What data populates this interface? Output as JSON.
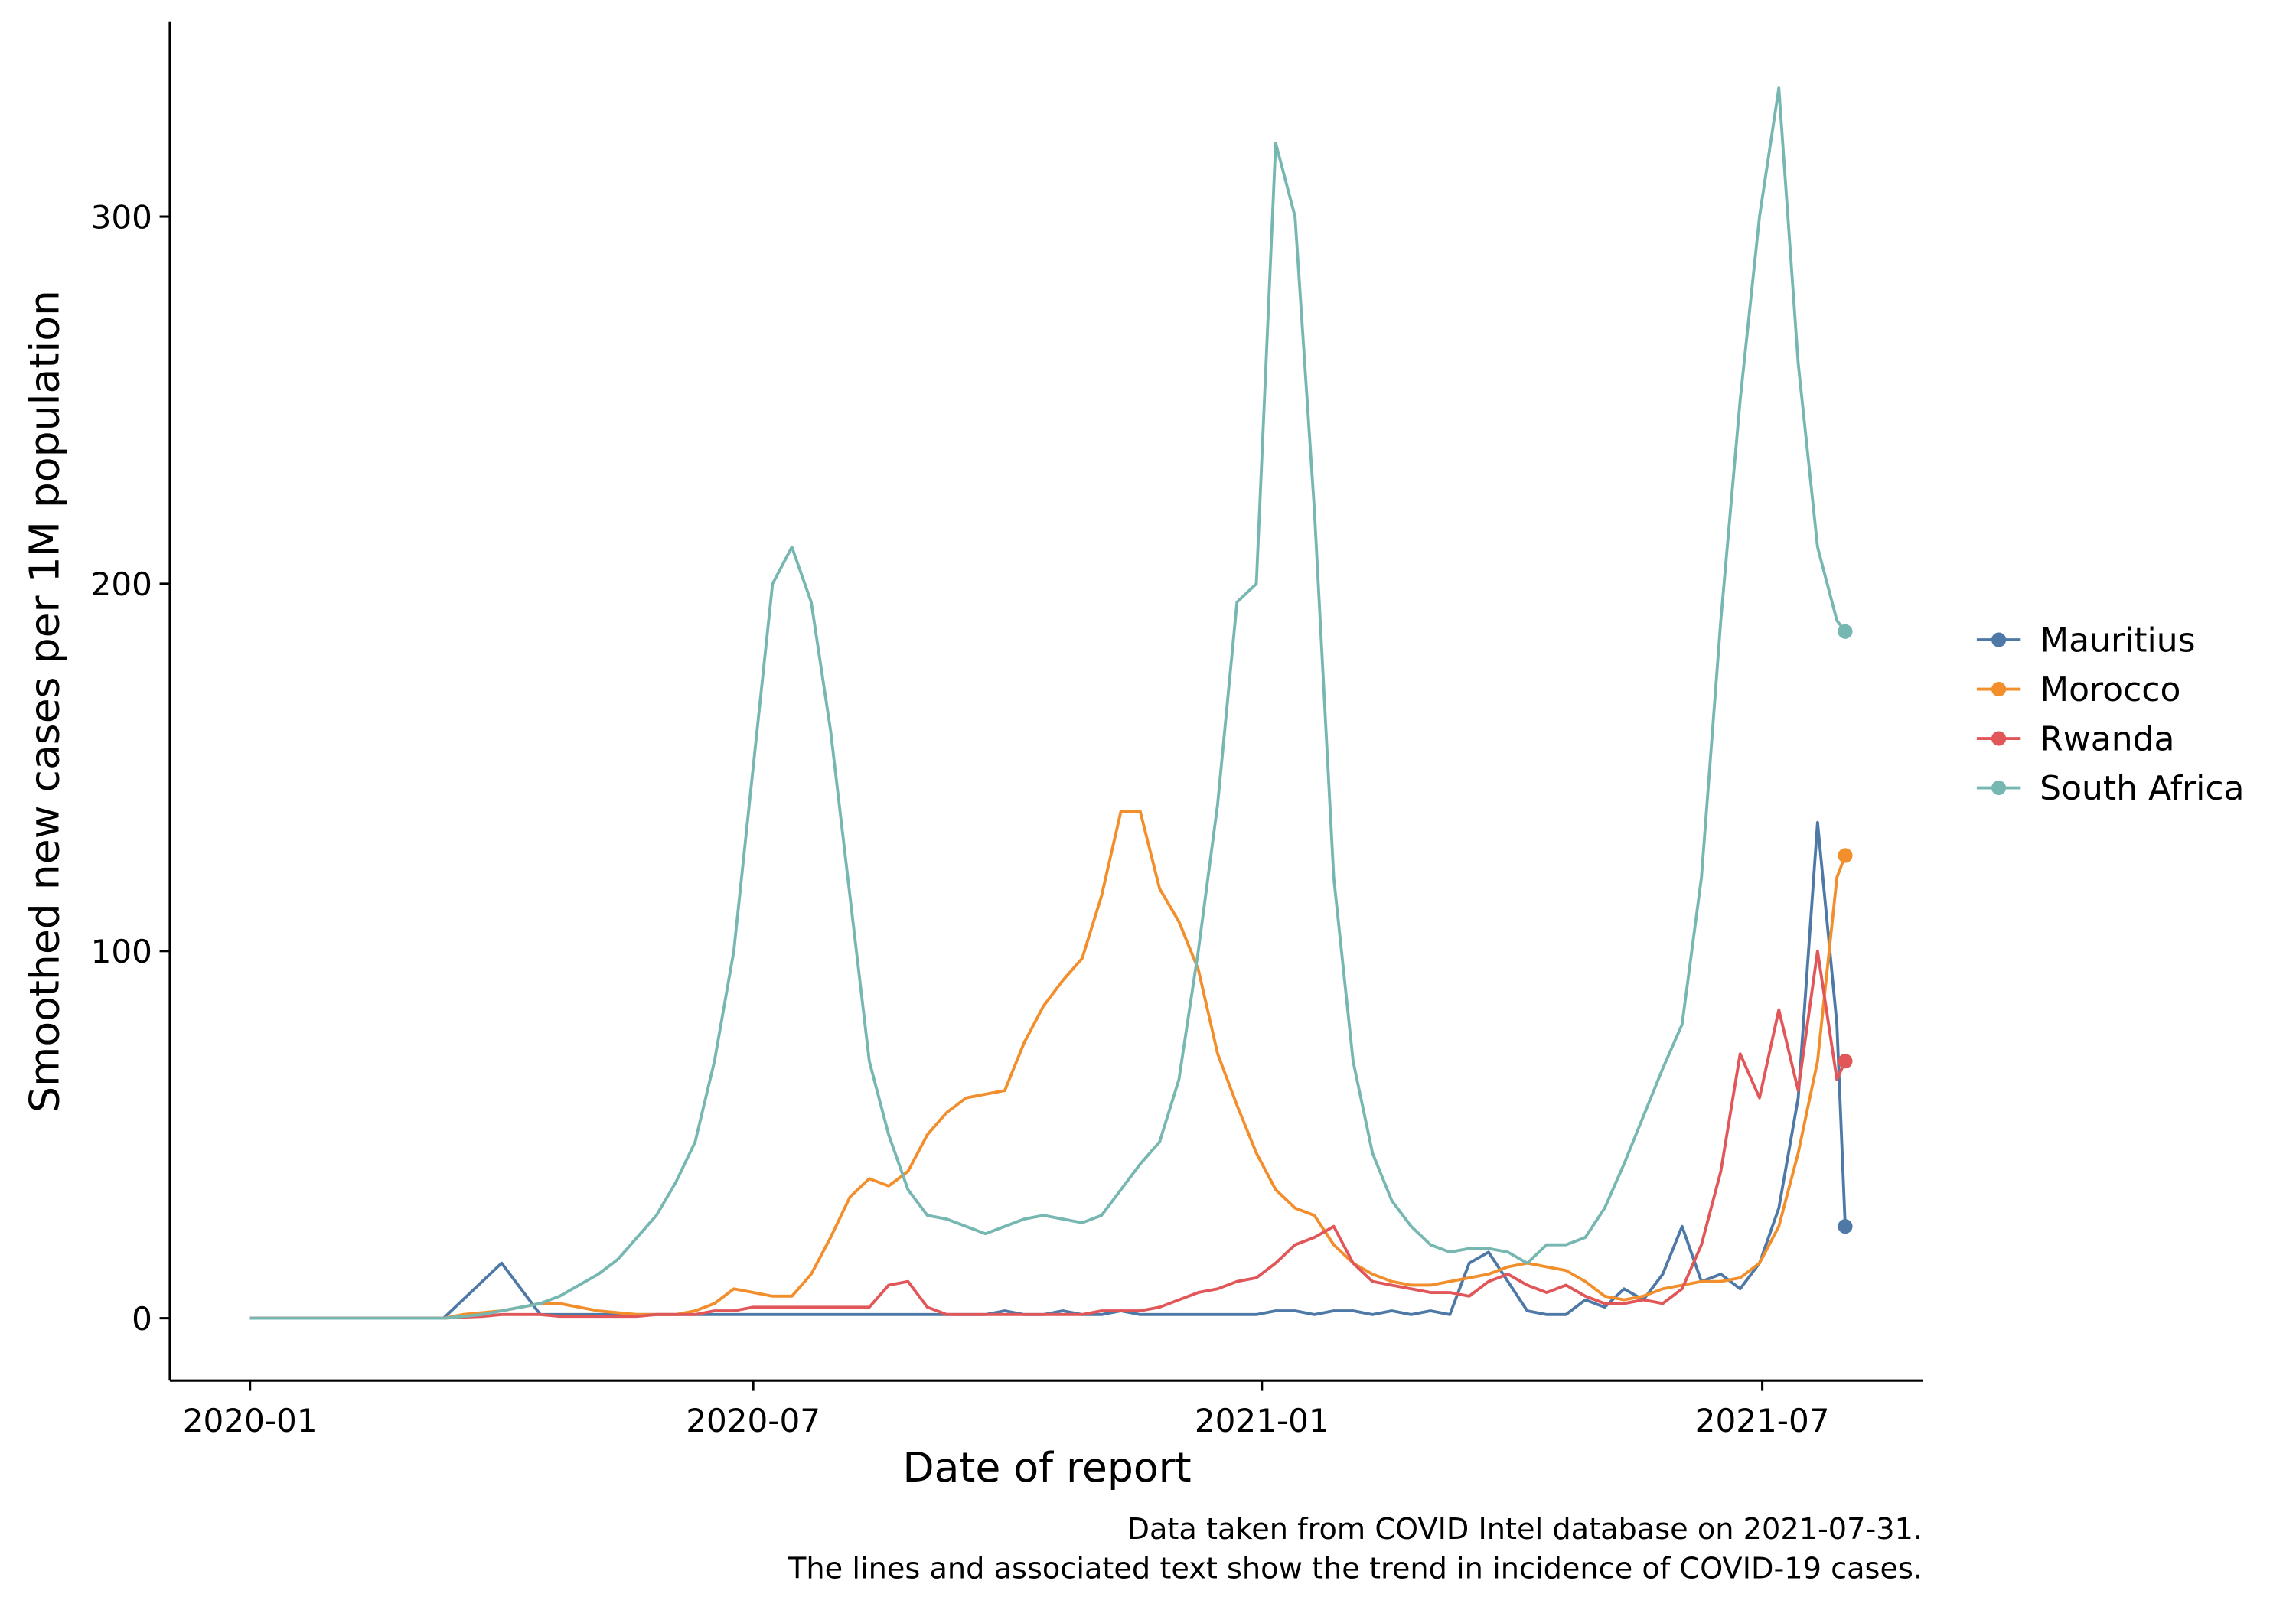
{
  "chart_data": {
    "type": "line",
    "xlabel": "Date of report",
    "ylabel": "Smoothed new cases per 1M population",
    "caption": [
      "Data taken from COVID Intel database on 2021-07-31.",
      "The lines and associated text show the trend in incidence of COVID-19 cases."
    ],
    "x_unit": "days since 2020-01-01",
    "xlim": [
      -29,
      605
    ],
    "xticks": [
      {
        "value": 0,
        "label": "2020-01"
      },
      {
        "value": 182,
        "label": "2020-07"
      },
      {
        "value": 366,
        "label": "2021-01"
      },
      {
        "value": 547,
        "label": "2021-07"
      }
    ],
    "ylim": [
      -17,
      353
    ],
    "yticks": [
      0,
      100,
      200,
      300
    ],
    "grid": false,
    "legend_position": "right",
    "end_markers": true,
    "x": [
      0,
      7,
      14,
      21,
      28,
      35,
      42,
      49,
      56,
      63,
      70,
      77,
      84,
      91,
      98,
      105,
      112,
      119,
      126,
      133,
      140,
      147,
      154,
      161,
      168,
      175,
      182,
      189,
      196,
      203,
      210,
      217,
      224,
      231,
      238,
      245,
      252,
      259,
      266,
      273,
      280,
      287,
      294,
      301,
      308,
      315,
      322,
      329,
      336,
      343,
      350,
      357,
      364,
      371,
      378,
      385,
      392,
      399,
      406,
      413,
      420,
      427,
      434,
      441,
      448,
      455,
      462,
      469,
      476,
      483,
      490,
      497,
      504,
      511,
      518,
      525,
      532,
      539,
      546,
      553,
      560,
      567,
      574,
      577
    ],
    "series": [
      {
        "name": "Mauritius",
        "color": "#4e79a7",
        "values": [
          0,
          0,
          0,
          0,
          0,
          0,
          0,
          0,
          0,
          0,
          0,
          5,
          10,
          15,
          8,
          1,
          1,
          1,
          1,
          1,
          1,
          1,
          1,
          1,
          1,
          1,
          1,
          1,
          1,
          1,
          1,
          1,
          1,
          1,
          1,
          1,
          1,
          1,
          1,
          2,
          1,
          1,
          2,
          1,
          1,
          2,
          1,
          1,
          1,
          1,
          1,
          1,
          1,
          2,
          2,
          1,
          2,
          2,
          1,
          2,
          1,
          2,
          1,
          15,
          18,
          10,
          2,
          1,
          1,
          5,
          3,
          8,
          5,
          12,
          25,
          10,
          12,
          8,
          15,
          30,
          60,
          135,
          80,
          25
        ]
      },
      {
        "name": "Morocco",
        "color": "#f28e2b",
        "values": [
          0,
          0,
          0,
          0,
          0,
          0,
          0,
          0,
          0,
          0,
          0,
          1,
          1.5,
          2,
          3,
          4,
          4,
          3,
          2,
          1.5,
          1,
          1,
          1,
          2,
          4,
          8,
          7,
          6,
          6,
          12,
          22,
          33,
          38,
          36,
          40,
          50,
          56,
          60,
          61,
          62,
          75,
          85,
          92,
          98,
          115,
          138,
          138,
          117,
          108,
          95,
          72,
          58,
          45,
          35,
          30,
          28,
          20,
          15,
          12,
          10,
          9,
          9,
          10,
          11,
          12,
          14,
          15,
          14,
          13,
          10,
          6,
          5,
          6,
          8,
          9,
          10,
          10,
          11,
          15,
          25,
          45,
          70,
          120,
          126
        ]
      },
      {
        "name": "Rwanda",
        "color": "#e15759",
        "values": [
          0,
          0,
          0,
          0,
          0,
          0,
          0,
          0,
          0,
          0,
          0,
          0.3,
          0.5,
          1,
          1,
          1,
          0.5,
          0.5,
          0.5,
          0.5,
          0.5,
          1,
          1,
          1,
          2,
          2,
          3,
          3,
          3,
          3,
          3,
          3,
          3,
          9,
          10,
          3,
          1,
          1,
          1,
          1,
          1,
          1,
          1,
          1,
          2,
          2,
          2,
          3,
          5,
          7,
          8,
          10,
          11,
          15,
          20,
          22,
          25,
          15,
          10,
          9,
          8,
          7,
          7,
          6,
          10,
          12,
          9,
          7,
          9,
          6,
          4,
          4,
          5,
          4,
          8,
          20,
          40,
          72,
          60,
          84,
          62,
          100,
          65,
          70
        ]
      },
      {
        "name": "South Africa",
        "color": "#76b7b2",
        "values": [
          0,
          0,
          0,
          0,
          0,
          0,
          0,
          0,
          0,
          0,
          0,
          0.5,
          1,
          2,
          3,
          4,
          6,
          9,
          12,
          16,
          22,
          28,
          37,
          48,
          70,
          100,
          150,
          200,
          210,
          195,
          160,
          115,
          70,
          50,
          35,
          28,
          27,
          25,
          23,
          25,
          27,
          28,
          27,
          26,
          28,
          35,
          42,
          48,
          65,
          100,
          140,
          195,
          200,
          320,
          300,
          220,
          120,
          70,
          45,
          32,
          25,
          20,
          18,
          19,
          19,
          18,
          15,
          20,
          20,
          22,
          30,
          42,
          55,
          68,
          80,
          120,
          190,
          250,
          300,
          335,
          260,
          210,
          190,
          187
        ]
      }
    ]
  }
}
